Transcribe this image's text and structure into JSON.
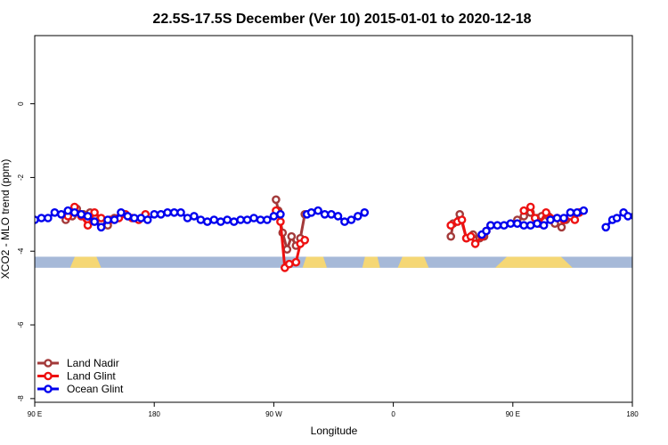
{
  "chart_data": {
    "type": "line",
    "title": "22.5S-17.5S December (Ver 10)   2015-01-01 to 2020-12-18",
    "xlabel": "Longitude",
    "ylabel": "XCO2 - MLO trend (ppm)",
    "xlim": [
      -90,
      180
    ],
    "ylim": [
      -8.1,
      1.85
    ],
    "x_ticks": [
      {
        "value": -90,
        "label": "90 E"
      },
      {
        "value": -36,
        "label": "180"
      },
      {
        "value": 18,
        "label": "90 W"
      },
      {
        "value": 72,
        "label": "0"
      },
      {
        "value": 126,
        "label": "90 E"
      },
      {
        "value": 180,
        "label": "180"
      }
    ],
    "y_ticks": [
      0,
      -2,
      -4,
      -6,
      -8
    ],
    "grid": false,
    "legend_position": "bottom-left",
    "land_mask": {
      "y_range": [
        -4.45,
        -4.15
      ],
      "ocean_color": "#a6b9d8",
      "land_color": "#f5d775",
      "land_segments": [
        [
          -74,
          -60
        ],
        [
          31,
          42
        ],
        [
          58,
          66
        ],
        [
          74,
          88
        ],
        [
          118,
          153
        ]
      ]
    },
    "series": [
      {
        "name": "Land Nadir",
        "color": "#a33a3a",
        "segments": [
          [
            [
              -76,
              -3.15
            ],
            [
              -73,
              -3.05
            ],
            [
              -71,
              -2.85
            ],
            [
              -68,
              -3.0
            ],
            [
              -65,
              -2.95
            ],
            [
              -63,
              -3.05
            ],
            [
              -60,
              -3.2
            ],
            [
              -57,
              -3.3
            ],
            [
              -54,
              -3.1
            ]
          ],
          [
            [
              19,
              -2.6
            ],
            [
              20,
              -2.9
            ],
            [
              22,
              -3.5
            ],
            [
              24,
              -3.95
            ],
            [
              26,
              -3.6
            ],
            [
              28,
              -3.85
            ],
            [
              30,
              -3.65
            ],
            [
              32,
              -3.0
            ]
          ],
          [
            [
              98,
              -3.6
            ],
            [
              99,
              -3.25
            ],
            [
              102,
              -3.0
            ],
            [
              105,
              -3.65
            ],
            [
              108,
              -3.55
            ],
            [
              111,
              -3.65
            ],
            [
              113,
              -3.6
            ],
            [
              116,
              -3.3
            ]
          ],
          [
            [
              128,
              -3.15
            ],
            [
              131,
              -3.05
            ],
            [
              134,
              -2.95
            ],
            [
              137,
              -3.1
            ],
            [
              139,
              -3.05
            ],
            [
              142,
              -3.05
            ],
            [
              145,
              -3.25
            ],
            [
              148,
              -3.35
            ],
            [
              150,
              -3.15
            ]
          ]
        ]
      },
      {
        "name": "Land Glint",
        "color": "#ee1111",
        "segments": [
          [
            [
              -75,
              -3.05
            ],
            [
              -72,
              -2.8
            ],
            [
              -69,
              -3.05
            ],
            [
              -66,
              -3.3
            ],
            [
              -63,
              -2.95
            ],
            [
              -60,
              -3.1
            ],
            [
              -56,
              -3.15
            ],
            [
              -52,
              -3.1
            ],
            [
              -49,
              -3.0
            ],
            [
              -46,
              -3.1
            ],
            [
              -43,
              -3.15
            ],
            [
              -40,
              -3.0
            ]
          ],
          [
            [
              19,
              -2.9
            ],
            [
              21,
              -3.2
            ],
            [
              23,
              -4.45
            ],
            [
              25,
              -4.35
            ],
            [
              28,
              -4.3
            ],
            [
              30,
              -3.8
            ],
            [
              32,
              -3.7
            ]
          ],
          [
            [
              98,
              -3.3
            ],
            [
              101,
              -3.2
            ],
            [
              103,
              -3.15
            ],
            [
              105,
              -3.65
            ],
            [
              107,
              -3.6
            ],
            [
              109,
              -3.8
            ],
            [
              112,
              -3.6
            ],
            [
              114,
              -3.45
            ]
          ],
          [
            [
              131,
              -2.9
            ],
            [
              134,
              -2.8
            ],
            [
              136,
              -3.1
            ],
            [
              138,
              -3.25
            ],
            [
              141,
              -2.95
            ],
            [
              143,
              -3.1
            ],
            [
              146,
              -3.1
            ],
            [
              149,
              -3.15
            ],
            [
              152,
              -3.05
            ],
            [
              154,
              -3.15
            ],
            [
              156,
              -2.95
            ]
          ]
        ]
      },
      {
        "name": "Ocean Glint",
        "color": "#0000ee",
        "segments": [
          [
            [
              -90,
              -3.15
            ],
            [
              -87,
              -3.1
            ],
            [
              -84,
              -3.1
            ],
            [
              -81,
              -2.95
            ],
            [
              -78,
              -3.0
            ],
            [
              -75,
              -2.9
            ],
            [
              -72,
              -2.95
            ],
            [
              -69,
              -3.0
            ],
            [
              -66,
              -3.05
            ],
            [
              -63,
              -3.2
            ],
            [
              -60,
              -3.35
            ],
            [
              -57,
              -3.15
            ],
            [
              -54,
              -3.15
            ],
            [
              -51,
              -2.95
            ],
            [
              -48,
              -3.05
            ],
            [
              -45,
              -3.1
            ],
            [
              -42,
              -3.1
            ],
            [
              -39,
              -3.15
            ],
            [
              -36,
              -3.0
            ],
            [
              -33,
              -3.0
            ],
            [
              -30,
              -2.95
            ],
            [
              -27,
              -2.95
            ],
            [
              -24,
              -2.95
            ],
            [
              -21,
              -3.1
            ],
            [
              -18,
              -3.05
            ],
            [
              -15,
              -3.15
            ],
            [
              -12,
              -3.2
            ],
            [
              -9,
              -3.15
            ],
            [
              -6,
              -3.2
            ],
            [
              -3,
              -3.15
            ],
            [
              0,
              -3.2
            ],
            [
              3,
              -3.15
            ],
            [
              6,
              -3.15
            ],
            [
              9,
              -3.1
            ],
            [
              12,
              -3.15
            ],
            [
              15,
              -3.15
            ],
            [
              18,
              -3.05
            ],
            [
              21,
              -3.0
            ]
          ],
          [
            [
              33,
              -3.0
            ],
            [
              35,
              -2.95
            ],
            [
              38,
              -2.9
            ],
            [
              41,
              -3.0
            ],
            [
              44,
              -3.0
            ],
            [
              47,
              -3.05
            ],
            [
              50,
              -3.2
            ],
            [
              53,
              -3.15
            ],
            [
              56,
              -3.05
            ],
            [
              59,
              -2.95
            ]
          ],
          [
            [
              112,
              -3.55
            ],
            [
              114,
              -3.45
            ],
            [
              116,
              -3.3
            ],
            [
              119,
              -3.3
            ],
            [
              122,
              -3.3
            ],
            [
              125,
              -3.25
            ],
            [
              128,
              -3.25
            ],
            [
              131,
              -3.3
            ],
            [
              134,
              -3.3
            ],
            [
              137,
              -3.25
            ],
            [
              140,
              -3.3
            ],
            [
              143,
              -3.15
            ],
            [
              146,
              -3.1
            ],
            [
              149,
              -3.1
            ],
            [
              152,
              -2.95
            ],
            [
              155,
              -2.95
            ],
            [
              158,
              -2.9
            ]
          ],
          [
            [
              168,
              -3.35
            ],
            [
              171,
              -3.15
            ],
            [
              173,
              -3.1
            ],
            [
              176,
              -2.95
            ],
            [
              178,
              -3.05
            ],
            [
              181,
              -3.05
            ],
            [
              184,
              -3.1
            ],
            [
              187,
              -3.15
            ]
          ]
        ]
      }
    ]
  }
}
